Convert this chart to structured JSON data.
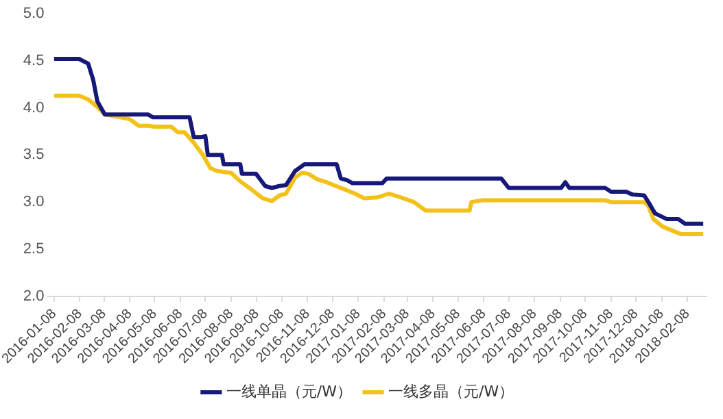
{
  "chart_data": {
    "type": "line",
    "xlim": [
      "2016-01-01",
      "2018-03-03"
    ],
    "ylim": [
      2.0,
      5.0
    ],
    "yticks": [
      {
        "value": 2,
        "label": "2.0"
      },
      {
        "value": 2.5,
        "label": "2.5"
      },
      {
        "value": 3,
        "label": "3.0"
      },
      {
        "value": 3.5,
        "label": "3.5"
      },
      {
        "value": 4,
        "label": "4.0"
      },
      {
        "value": 4.5,
        "label": "4.5"
      },
      {
        "value": 5,
        "label": "5.0"
      }
    ],
    "xticks": [
      "2016-01-08",
      "2016-02-08",
      "2016-03-08",
      "2016-04-08",
      "2016-05-08",
      "2016-06-08",
      "2016-07-08",
      "2016-08-08",
      "2016-09-08",
      "2016-10-08",
      "2016-11-08",
      "2016-12-08",
      "2017-01-08",
      "2017-02-08",
      "2017-03-08",
      "2017-04-08",
      "2017-05-08",
      "2017-06-08",
      "2017-07-08",
      "2017-08-08",
      "2017-09-08",
      "2017-10-08",
      "2017-11-08",
      "2017-12-08",
      "2018-01-08",
      "2018-02-08"
    ],
    "grid": false,
    "legend": "bottom",
    "marker": "none",
    "line_style": "solid",
    "series": [
      {
        "name": "一线单晶（元/W）",
        "color": "#16197a",
        "x": [
          "2016-01-08",
          "2016-02-07",
          "2016-02-18",
          "2016-02-24",
          "2016-02-29",
          "2016-03-09",
          "2016-04-30",
          "2016-05-06",
          "2016-06-19",
          "2016-06-24",
          "2016-07-03",
          "2016-07-08",
          "2016-07-11",
          "2016-07-28",
          "2016-07-30",
          "2016-08-19",
          "2016-08-21",
          "2016-09-07",
          "2016-09-18",
          "2016-09-26",
          "2016-10-05",
          "2016-10-13",
          "2016-10-24",
          "2016-11-04",
          "2016-12-13",
          "2016-12-18",
          "2016-12-26",
          "2017-01-01",
          "2017-01-15",
          "2017-02-06",
          "2017-02-11",
          "2017-06-29",
          "2017-07-08",
          "2017-09-09",
          "2017-09-14",
          "2017-09-19",
          "2017-11-01",
          "2017-11-08",
          "2017-11-26",
          "2017-12-04",
          "2017-12-18",
          "2017-12-23",
          "2017-12-31",
          "2018-01-14",
          "2018-01-28",
          "2018-02-05",
          "2018-02-27"
        ],
        "values": [
          4.52,
          4.52,
          4.47,
          4.3,
          4.07,
          3.93,
          3.93,
          3.9,
          3.9,
          3.69,
          3.69,
          3.7,
          3.5,
          3.5,
          3.4,
          3.4,
          3.3,
          3.3,
          3.17,
          3.15,
          3.17,
          3.18,
          3.33,
          3.4,
          3.4,
          3.25,
          3.23,
          3.2,
          3.2,
          3.2,
          3.25,
          3.25,
          3.15,
          3.15,
          3.21,
          3.15,
          3.15,
          3.11,
          3.11,
          3.08,
          3.07,
          3.0,
          2.88,
          2.82,
          2.82,
          2.77,
          2.77
        ]
      },
      {
        "name": "一线多晶（元/W）",
        "color": "#f2c21b",
        "x": [
          "2016-01-08",
          "2016-02-07",
          "2016-02-18",
          "2016-02-29",
          "2016-03-09",
          "2016-03-28",
          "2016-04-08",
          "2016-04-19",
          "2016-04-30",
          "2016-05-08",
          "2016-05-28",
          "2016-06-05",
          "2016-06-13",
          "2016-06-24",
          "2016-07-05",
          "2016-07-14",
          "2016-07-22",
          "2016-08-08",
          "2016-08-19",
          "2016-08-30",
          "2016-09-15",
          "2016-09-26",
          "2016-10-05",
          "2016-10-13",
          "2016-10-24",
          "2016-11-01",
          "2016-11-09",
          "2016-11-20",
          "2016-12-01",
          "2016-12-18",
          "2017-01-04",
          "2017-01-15",
          "2017-01-31",
          "2017-02-14",
          "2017-02-28",
          "2017-03-16",
          "2017-03-30",
          "2017-05-22",
          "2017-05-24",
          "2017-06-07",
          "2017-11-01",
          "2017-11-08",
          "2017-12-18",
          "2017-12-23",
          "2017-12-29",
          "2018-01-09",
          "2018-01-20",
          "2018-01-31",
          "2018-02-27"
        ],
        "values": [
          4.13,
          4.13,
          4.09,
          4.01,
          3.93,
          3.9,
          3.88,
          3.81,
          3.81,
          3.8,
          3.8,
          3.74,
          3.74,
          3.63,
          3.5,
          3.36,
          3.33,
          3.31,
          3.22,
          3.15,
          3.04,
          3.01,
          3.07,
          3.09,
          3.26,
          3.31,
          3.3,
          3.24,
          3.21,
          3.15,
          3.09,
          3.04,
          3.05,
          3.09,
          3.05,
          3.0,
          2.91,
          2.91,
          3.0,
          3.02,
          3.02,
          3.0,
          3.0,
          2.96,
          2.82,
          2.74,
          2.7,
          2.66,
          2.66
        ]
      }
    ]
  }
}
